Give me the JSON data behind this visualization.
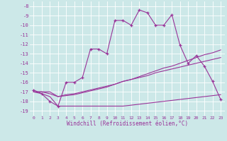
{
  "xlabel": "Windchill (Refroidissement éolien,°C)",
  "background_color": "#cce8e8",
  "grid_color": "#ffffff",
  "line_color": "#993399",
  "x_hours": [
    0,
    1,
    2,
    3,
    4,
    5,
    6,
    7,
    8,
    9,
    10,
    11,
    12,
    13,
    14,
    15,
    16,
    17,
    18,
    19,
    20,
    21,
    22,
    23
  ],
  "windchill": [
    -16.8,
    -17.2,
    -18.0,
    -18.5,
    -16.0,
    -16.0,
    -15.5,
    -12.5,
    -12.5,
    -13.0,
    -9.5,
    -9.5,
    -10.0,
    -8.4,
    -8.7,
    -10.0,
    -10.0,
    -8.9,
    -12.1,
    -14.0,
    -13.2,
    -14.3,
    -15.9,
    -17.8
  ],
  "temp_line1": [
    -17.0,
    -17.0,
    -17.0,
    -17.5,
    -17.3,
    -17.2,
    -17.0,
    -16.8,
    -16.6,
    -16.4,
    -16.2,
    -15.9,
    -15.7,
    -15.5,
    -15.3,
    -15.0,
    -14.8,
    -14.6,
    -14.4,
    -14.2,
    -14.0,
    -13.8,
    -13.6,
    -13.4
  ],
  "temp_line2": [
    -17.0,
    -17.2,
    -17.5,
    -18.5,
    -18.5,
    -18.5,
    -18.5,
    -18.5,
    -18.5,
    -18.5,
    -18.5,
    -18.5,
    -18.4,
    -18.3,
    -18.2,
    -18.1,
    -18.0,
    -17.9,
    -17.8,
    -17.7,
    -17.6,
    -17.5,
    -17.4,
    -17.3
  ],
  "temp_line3": [
    -17.0,
    -17.0,
    -17.2,
    -17.5,
    -17.4,
    -17.3,
    -17.1,
    -16.9,
    -16.7,
    -16.5,
    -16.2,
    -15.9,
    -15.7,
    -15.4,
    -15.1,
    -14.8,
    -14.5,
    -14.3,
    -14.0,
    -13.7,
    -13.4,
    -13.1,
    -12.9,
    -12.6
  ],
  "ylim": [
    -19.5,
    -7.5
  ],
  "xlim": [
    -0.5,
    23.5
  ],
  "yticks": [
    -19,
    -18,
    -17,
    -16,
    -15,
    -14,
    -13,
    -12,
    -11,
    -10,
    -9,
    -8
  ],
  "xticks": [
    0,
    1,
    2,
    3,
    4,
    5,
    6,
    7,
    8,
    9,
    10,
    11,
    12,
    13,
    14,
    15,
    16,
    17,
    18,
    19,
    20,
    21,
    22,
    23
  ]
}
